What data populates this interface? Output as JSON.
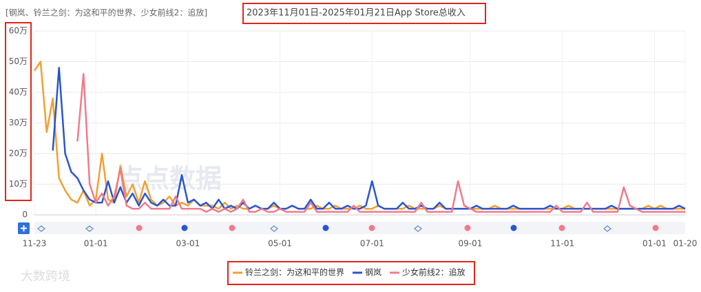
{
  "chart_data": {
    "type": "line",
    "title": "[钢岚、铃兰之剑：为这和平的世界、少女前线2：追放]",
    "subtitle": "2023年11月01日-2025年01月21日App Store总收入",
    "watermark": "点点数据",
    "footer_watermark": "大数跨境",
    "categories": [
      "11-23",
      null,
      null,
      null,
      null,
      null,
      null,
      null,
      null,
      null,
      "01-01",
      null,
      null,
      null,
      null,
      null,
      null,
      null,
      null,
      null,
      null,
      null,
      null,
      null,
      null,
      "03-01",
      null,
      null,
      null,
      null,
      null,
      null,
      null,
      null,
      null,
      null,
      null,
      null,
      null,
      null,
      "05-01",
      null,
      null,
      null,
      null,
      null,
      null,
      null,
      null,
      null,
      null,
      null,
      null,
      null,
      null,
      "07-01",
      null,
      null,
      null,
      null,
      null,
      null,
      null,
      null,
      null,
      null,
      null,
      null,
      null,
      null,
      null,
      "09-01",
      null,
      null,
      null,
      null,
      null,
      null,
      null,
      null,
      null,
      null,
      null,
      null,
      null,
      null,
      "11-01",
      null,
      null,
      null,
      null,
      null,
      null,
      null,
      null,
      null,
      null,
      null,
      null,
      null,
      null,
      "01-01",
      null,
      null,
      null,
      null,
      "01-20"
    ],
    "ylim": [
      0,
      60
    ],
    "yticks": [
      0,
      {
        "value": 10,
        "label": "10万"
      },
      {
        "value": 20,
        "label": "20万"
      },
      {
        "value": 30,
        "label": "30万"
      },
      {
        "value": 40,
        "label": "40万"
      },
      {
        "value": 50,
        "label": "50万"
      },
      {
        "value": 60,
        "label": "60万"
      }
    ],
    "grid": true,
    "legend": "bottom",
    "series": [
      {
        "name": "铃兰之剑：为这和平的世界",
        "color": "#f0a030",
        "values": [
          47,
          50,
          27,
          38,
          12,
          8,
          5,
          4,
          8,
          3,
          5,
          20,
          5,
          4,
          16,
          6,
          10,
          4,
          11,
          5,
          3,
          4,
          6,
          3,
          4,
          3,
          5,
          3,
          3,
          3,
          2,
          4,
          2,
          3,
          2,
          2,
          3,
          2,
          2,
          3,
          2,
          2,
          3,
          2,
          2,
          2,
          3,
          2,
          2,
          3,
          2,
          2,
          2,
          3,
          2,
          2,
          3,
          2,
          2,
          2,
          2,
          3,
          2,
          2,
          2,
          2,
          3,
          2,
          2,
          2,
          2,
          2,
          2,
          2,
          2,
          3,
          2,
          2,
          2,
          2,
          2,
          2,
          2,
          2,
          2,
          2,
          2,
          3,
          2,
          2,
          2,
          2,
          2,
          2,
          2,
          2,
          2,
          2,
          2,
          2,
          3,
          2,
          3,
          2,
          2,
          2,
          2
        ]
      },
      {
        "name": "钢岚",
        "color": "#2855d0",
        "values": [
          null,
          null,
          null,
          21,
          48,
          20,
          14,
          12,
          8,
          5,
          4,
          4,
          11,
          4,
          9,
          4,
          7,
          3,
          7,
          4,
          3,
          5,
          3,
          3,
          13,
          4,
          5,
          3,
          4,
          2,
          5,
          2,
          3,
          2,
          4,
          2,
          3,
          2,
          2,
          4,
          2,
          2,
          3,
          2,
          2,
          5,
          2,
          2,
          4,
          2,
          2,
          3,
          2,
          2,
          3,
          11,
          3,
          2,
          2,
          2,
          4,
          2,
          2,
          3,
          2,
          2,
          4,
          2,
          2,
          2,
          2,
          2,
          3,
          2,
          2,
          2,
          2,
          2,
          3,
          2,
          2,
          2,
          2,
          2,
          3,
          2,
          2,
          2,
          2,
          2,
          2,
          2,
          2,
          2,
          3,
          2,
          2,
          2,
          2,
          2,
          2,
          2,
          2,
          2,
          2,
          3,
          2
        ]
      },
      {
        "name": "少女前线2：追放",
        "color": "#f07a8a",
        "values": [
          null,
          null,
          null,
          null,
          null,
          null,
          null,
          24,
          46,
          10,
          4,
          7,
          3,
          6,
          15,
          3,
          2,
          2,
          4,
          2,
          2,
          2,
          2,
          6,
          2,
          2,
          2,
          2,
          1,
          2,
          1,
          2,
          1,
          2,
          5,
          1,
          1,
          2,
          1,
          1,
          2,
          1,
          1,
          1,
          1,
          4,
          1,
          1,
          1,
          1,
          1,
          1,
          3,
          1,
          1,
          1,
          1,
          1,
          1,
          1,
          1,
          1,
          1,
          4,
          1,
          1,
          1,
          1,
          1,
          11,
          3,
          2,
          1,
          1,
          1,
          1,
          1,
          1,
          1,
          1,
          1,
          1,
          1,
          1,
          1,
          3,
          1,
          1,
          1,
          1,
          4,
          1,
          1,
          1,
          1,
          1,
          9,
          3,
          2,
          1,
          1,
          1,
          1,
          1,
          1,
          1,
          1
        ]
      }
    ]
  }
}
